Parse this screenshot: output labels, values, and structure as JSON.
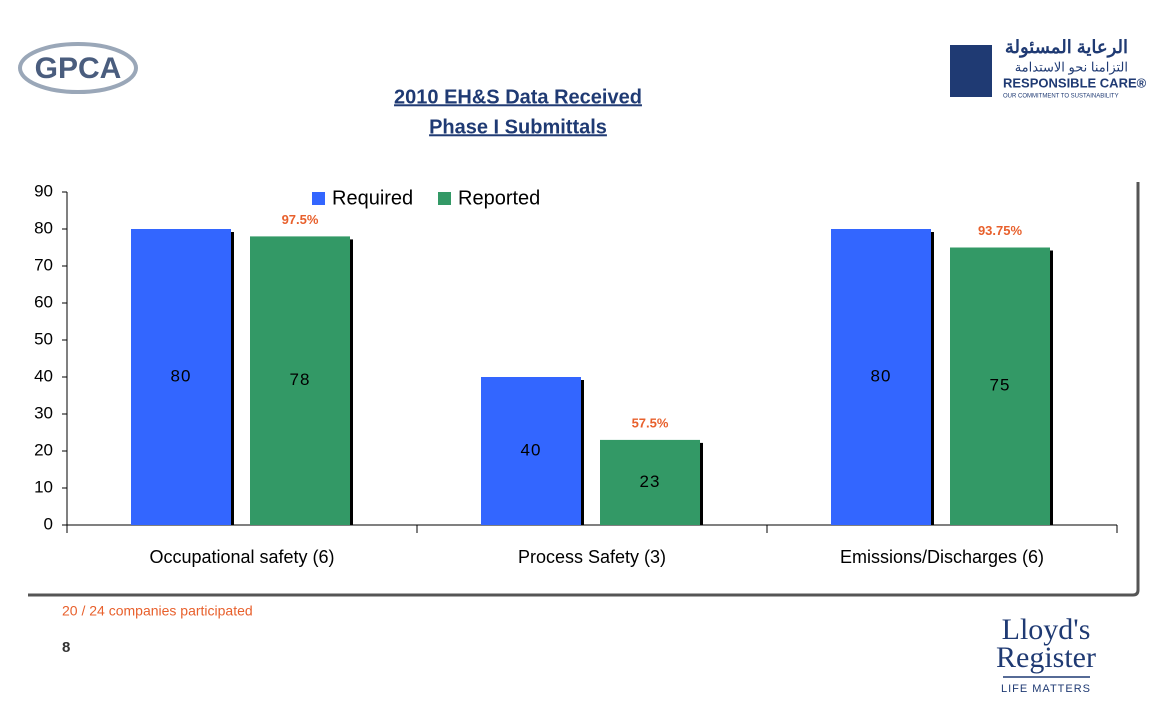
{
  "chart_data": {
    "type": "bar",
    "title": [
      "2010 EH&S Data Received",
      "Phase I Submittals"
    ],
    "categories": [
      "Occupational safety (6)",
      "Process Safety (3)",
      "Emissions/Discharges (6)"
    ],
    "series": [
      {
        "name": "Required",
        "color": "#3366ff",
        "values": [
          80,
          40,
          80
        ]
      },
      {
        "name": "Reported",
        "color": "#339966",
        "values": [
          78,
          23,
          75
        ]
      }
    ],
    "annotations": [
      "97.5%",
      "57.5%",
      "93.75%"
    ],
    "ylim": [
      0,
      90
    ],
    "yticks": [
      0,
      10,
      20,
      30,
      40,
      50,
      60,
      70,
      80,
      90
    ],
    "legend": "top"
  },
  "footnote": "20 / 24 companies participated",
  "page_number": "8",
  "logos": {
    "gpca": "GPCA",
    "responsible_care": [
      "الرعاية المسئولة",
      "التزامنا نحو الاستدامة",
      "RESPONSIBLE CARE®",
      "OUR COMMITMENT TO SUSTAINABILITY"
    ],
    "lloyds": [
      "Lloyd's",
      "Register",
      "LIFE MATTERS"
    ]
  }
}
